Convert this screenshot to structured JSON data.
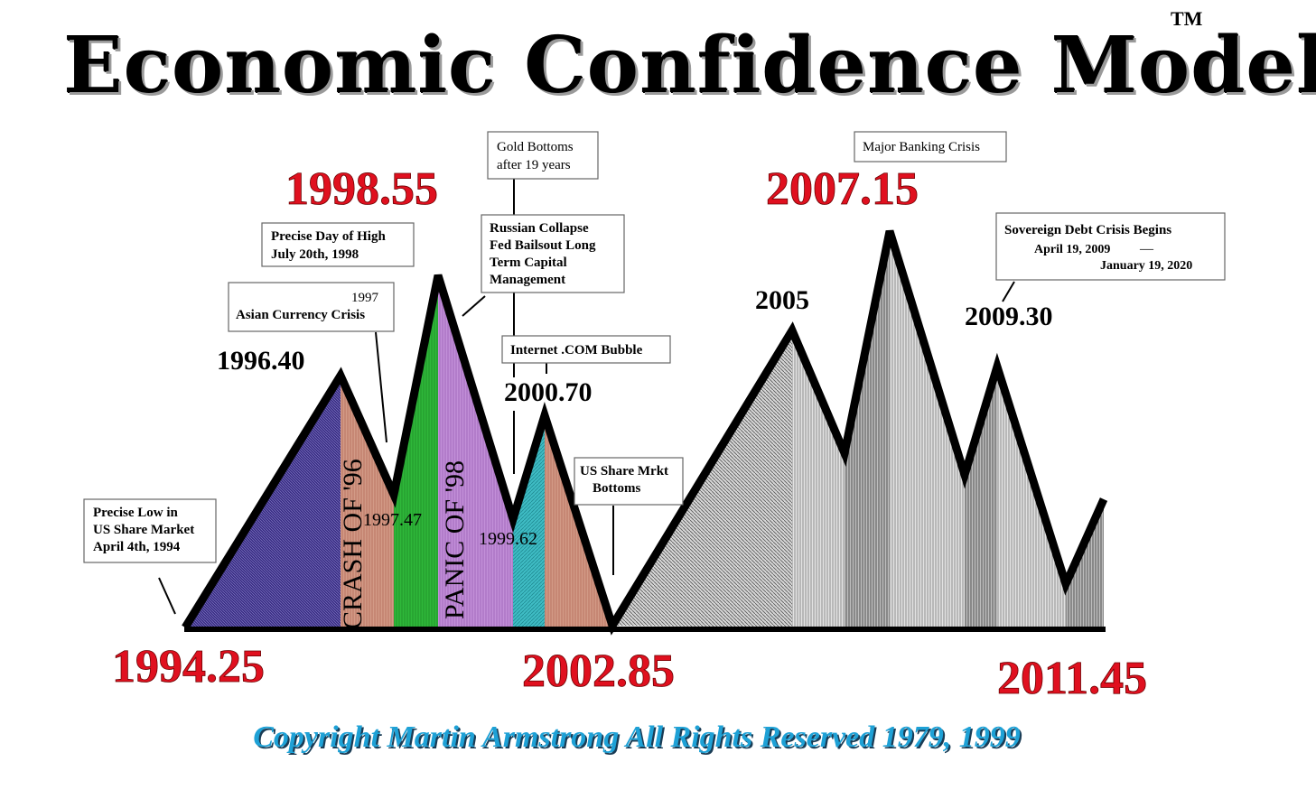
{
  "title": "Economic Confidence Model",
  "trademark": "TM",
  "copyright": "Copyright Martin Armstrong All Rights Reserved 1979, 1999",
  "colors": {
    "red_label": "#e0101f",
    "copyright": "#1ea1d6",
    "band_blue": "#3b2f86",
    "band_salmon": "#d29a86",
    "band_green": "#2fb83a",
    "band_violet": "#c28fd8",
    "band_cyan": "#3fbcc4",
    "band_gray": "#9a9a9a"
  },
  "red_labels": {
    "start": "1994.25",
    "peak_1998": "1998.55",
    "low_2002": "2002.85",
    "peak_2007": "2007.15",
    "end": "2011.45"
  },
  "black_labels": {
    "y1996": "1996.40",
    "y2000": "2000.70",
    "y2005": "2005",
    "y2009": "2009.30"
  },
  "inner_labels": {
    "crash": "CRASH OF '96",
    "panic": "PANIC OF '98",
    "dip1997": "1997.47",
    "dip1999": "1999.62"
  },
  "annotations": {
    "low1994": [
      "Precise Low in",
      "US Share Market",
      "April 4th, 1994"
    ],
    "asian": [
      "1997",
      "Asian Currency Crisis"
    ],
    "high1998": [
      "Precise Day of High",
      "July 20th, 1998"
    ],
    "gold": [
      "Gold Bottoms",
      "after 19 years"
    ],
    "russian": [
      "Russian Collapse",
      "Fed Bailsout Long",
      "Term Capital",
      "Management"
    ],
    "internet": "Internet .COM Bubble",
    "usbottom": [
      "US Share Mrkt",
      "Bottoms"
    ],
    "banking": "Major Banking Crisis",
    "sovereign": [
      "Sovereign Debt Crisis Begins",
      "April 19, 2009",
      "—",
      "January 19, 2020"
    ]
  }
}
